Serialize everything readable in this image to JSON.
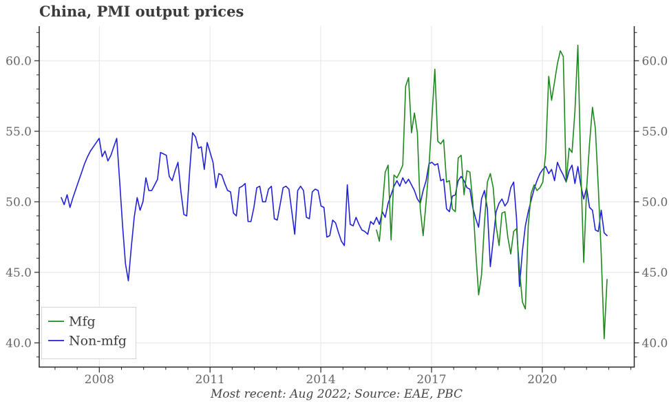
{
  "header": {
    "title": "China, PMI output prices"
  },
  "footer": {
    "caption": "Most recent: Aug 2022; Source: EAE, PBC"
  },
  "legend": [
    {
      "label": "Mfg",
      "color": "#1e871e"
    },
    {
      "label": "Non-mfg",
      "color": "#2020d5"
    }
  ],
  "colors": {
    "grid": "#e7e7e7",
    "spine": "#262626",
    "tick_label": "#666666",
    "title": "#3b3b3b",
    "caption": "#454545",
    "legend_border": "#d4d4d4",
    "background": "#ffffff"
  },
  "chart_data": {
    "type": "line",
    "title": "China, PMI output prices",
    "xlabel": "",
    "ylabel": "",
    "grid": true,
    "legend_position": "lower left",
    "ylim": [
      38.3,
      62.45
    ],
    "xlim_years": [
      2006.4,
      2022.5
    ],
    "y_major_ticks": [
      40.0,
      45.0,
      50.0,
      55.0,
      60.0
    ],
    "y_minor_tick_step": 1,
    "x_major_tick_years": [
      2008,
      2011,
      2014,
      2017,
      2020
    ],
    "x_tick_labels": [
      "2008",
      "2011",
      "2014",
      "2017",
      "2020"
    ],
    "frequency": "monthly",
    "most_recent": "2022-08",
    "series": [
      {
        "name": "Non-mfg",
        "color": "#2020d5",
        "start": "2007-01",
        "values": [
          50.3,
          49.8,
          50.5,
          49.6,
          50.3,
          50.9,
          51.5,
          52.1,
          52.7,
          53.2,
          53.6,
          53.9,
          54.2,
          54.5,
          53.2,
          53.6,
          52.9,
          53.3,
          53.9,
          54.5,
          51.5,
          48.3,
          45.6,
          44.4,
          46.8,
          48.9,
          50.3,
          49.4,
          50.0,
          51.7,
          50.8,
          50.8,
          51.2,
          51.6,
          53.5,
          53.4,
          53.3,
          51.8,
          51.5,
          52.2,
          52.8,
          50.7,
          49.1,
          49.0,
          52.2,
          54.9,
          54.6,
          53.8,
          53.9,
          52.3,
          54.2,
          53.5,
          52.8,
          51.0,
          52.0,
          51.9,
          51.3,
          50.8,
          50.7,
          49.2,
          49.0,
          51.0,
          51.1,
          51.3,
          48.6,
          48.6,
          49.6,
          51.0,
          51.1,
          50.0,
          50.0,
          50.9,
          51.1,
          48.8,
          48.7,
          49.8,
          51.0,
          51.1,
          50.9,
          49.3,
          47.7,
          50.8,
          51.1,
          50.8,
          48.9,
          48.8,
          50.7,
          50.9,
          50.8,
          49.7,
          49.6,
          47.5,
          47.6,
          48.7,
          48.5,
          47.8,
          47.2,
          46.9,
          51.2,
          48.4,
          48.3,
          48.9,
          48.4,
          48.0,
          47.9,
          47.7,
          48.6,
          48.4,
          48.9,
          48.4,
          49.3,
          48.9,
          49.9,
          50.5,
          51.1,
          51.5,
          51.1,
          51.7,
          51.3,
          51.6,
          51.2,
          50.8,
          50.2,
          49.9,
          50.8,
          51.5,
          52.7,
          52.8,
          52.6,
          52.7,
          51.5,
          51.6,
          49.5,
          49.3,
          50.4,
          50.5,
          51.5,
          51.8,
          51.5,
          51.0,
          50.9,
          49.6,
          48.8,
          48.2,
          50.2,
          50.8,
          49.5,
          45.4,
          47.3,
          49.3,
          49.9,
          50.2,
          49.7,
          50.0,
          51.0,
          51.4,
          48.8,
          44.0,
          46.5,
          48.3,
          49.3,
          50.1,
          50.9,
          51.5,
          52.0,
          52.3,
          52.5,
          52.0,
          52.3,
          51.5,
          52.8,
          52.3,
          51.9,
          51.4,
          52.2,
          52.6,
          51.3,
          52.5,
          51.2,
          50.2,
          51.0,
          49.6,
          49.4,
          48.0,
          47.9,
          49.4,
          47.8,
          47.6
        ]
      },
      {
        "name": "Mfg",
        "color": "#1e871e",
        "start": "2016-01",
        "values": [
          48.0,
          47.2,
          49.6,
          52.1,
          52.6,
          47.3,
          51.9,
          51.7,
          52.1,
          52.6,
          58.2,
          58.8,
          54.9,
          56.3,
          54.9,
          49.5,
          47.6,
          50.0,
          52.5,
          56.0,
          59.4,
          54.3,
          54.1,
          54.4,
          51.4,
          51.5,
          49.5,
          49.3,
          53.1,
          53.3,
          50.5,
          52.2,
          52.1,
          50.0,
          46.5,
          43.4,
          44.8,
          48.5,
          51.4,
          52.0,
          51.0,
          48.3,
          46.9,
          49.2,
          49.3,
          47.5,
          46.3,
          47.9,
          48.1,
          45.2,
          42.9,
          42.4,
          48.3,
          50.6,
          51.2,
          50.8,
          51.0,
          51.4,
          53.5,
          58.9,
          57.2,
          58.5,
          59.8,
          60.7,
          60.3,
          51.4,
          53.8,
          53.5,
          56.4,
          61.1,
          52.5,
          45.7,
          50.9,
          54.1,
          56.7,
          55.2,
          51.0,
          46.3,
          40.3,
          44.5
        ]
      }
    ]
  }
}
